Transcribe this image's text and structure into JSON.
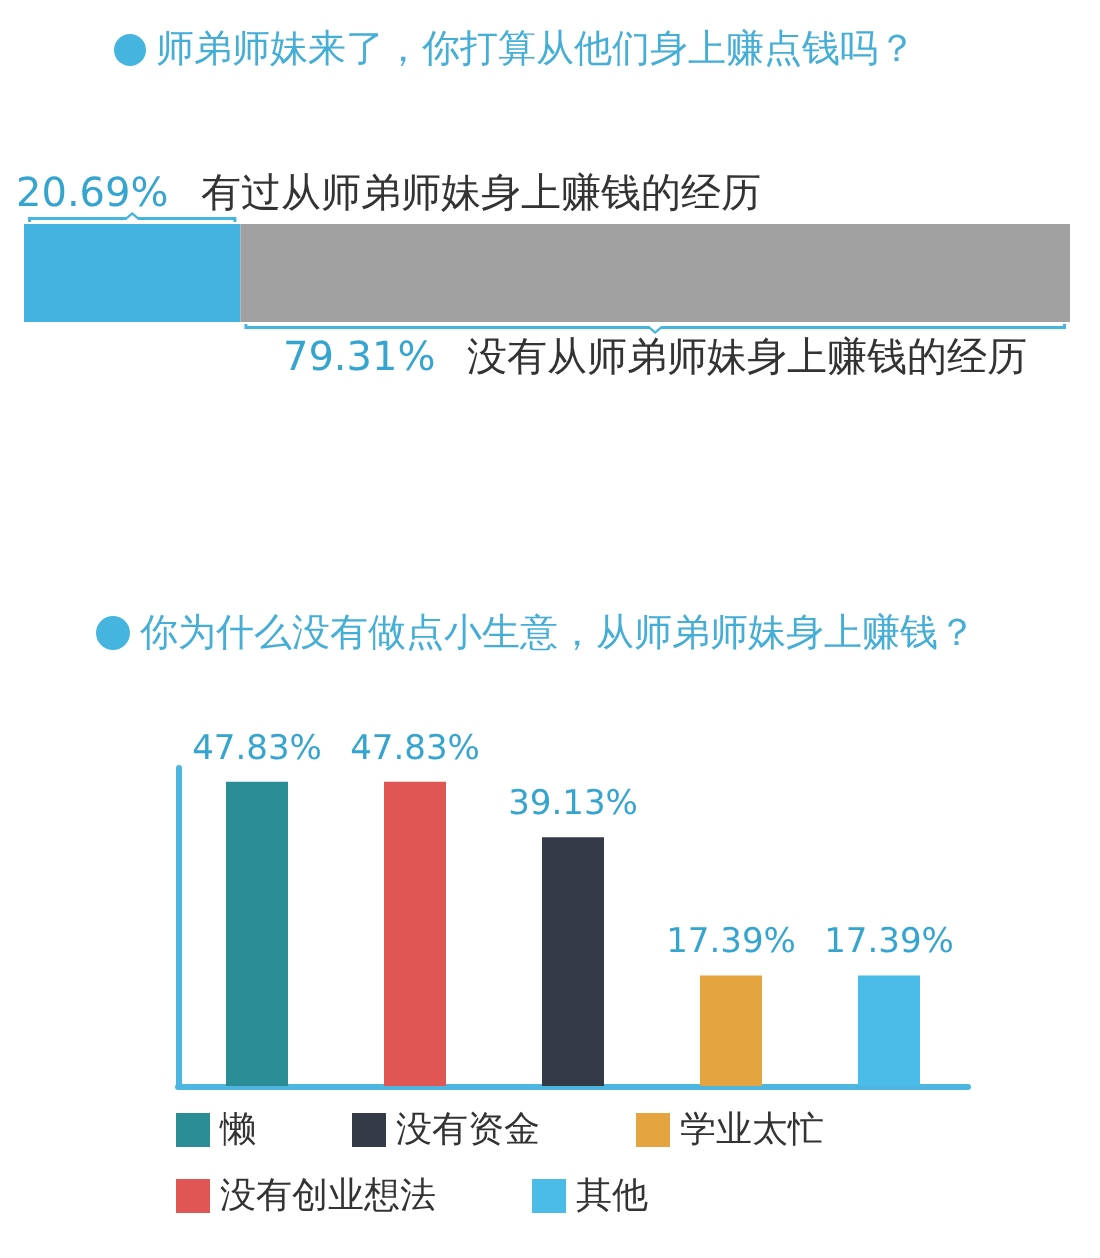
{
  "chart_data": [
    {
      "type": "bar",
      "orientation": "horizontal",
      "stacked": true,
      "title": "师弟师妹来了，你打算从他们身上赚点钱吗？",
      "categories": [
        null
      ],
      "xlim": [
        0,
        100
      ],
      "tick_labels": false,
      "series": [
        {
          "name": "有过从师弟师妹身上赚钱的经历",
          "color": "#45b3e0",
          "values": [
            20.69
          ],
          "value_labels": [
            "20.69%"
          ]
        },
        {
          "name": "没有从师弟师妹身上赚钱的经历",
          "color": "#a0a0a0",
          "values": [
            79.31
          ],
          "value_labels": [
            "79.31%"
          ]
        }
      ]
    },
    {
      "type": "bar",
      "stacked": true,
      "title": "你为什么没有做点小生意，从师弟师妹身上赚钱？",
      "categories": [
        null,
        null,
        null,
        null,
        null
      ],
      "ylim": [
        0,
        50
      ],
      "tick_labels": false,
      "legend": "bottom",
      "series": [
        {
          "name": "懒",
          "color": "#2b8d96",
          "values": [
            47.83,
            null,
            null,
            null,
            null
          ],
          "value_labels": [
            "47.83%",
            null,
            null,
            null,
            null
          ]
        },
        {
          "name": "没有资金",
          "color": "#343a46",
          "values": [
            null,
            null,
            39.13,
            null,
            null
          ],
          "value_labels": [
            null,
            null,
            "39.13%",
            null,
            null
          ]
        },
        {
          "name": "学业太忙",
          "color": "#e4a43f",
          "values": [
            null,
            null,
            null,
            17.39,
            null
          ],
          "value_labels": [
            null,
            null,
            null,
            "17.39%",
            null
          ]
        },
        {
          "name": "没有创业想法",
          "color": "#e05655",
          "values": [
            null,
            47.83,
            null,
            null,
            null
          ],
          "value_labels": [
            null,
            "47.83%",
            null,
            null,
            null
          ]
        },
        {
          "name": "其他",
          "color": "#4bbbe8",
          "values": [
            null,
            null,
            null,
            null,
            17.39
          ],
          "value_labels": [
            null,
            null,
            null,
            null,
            "17.39%"
          ]
        }
      ]
    }
  ]
}
